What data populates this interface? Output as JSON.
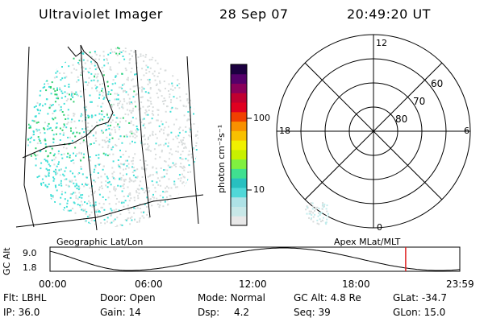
{
  "header": {
    "title": "Ultraviolet Imager",
    "date": "28 Sep 07",
    "time": "20:49:20 UT"
  },
  "geo_panel": {
    "label": "Geographic Lat/Lon"
  },
  "colorbar": {
    "unit_label": "photon cm⁻²s⁻¹",
    "tick_100": "100",
    "tick_10": "10",
    "colors": [
      "#e8e8e8",
      "#c8e8e8",
      "#aee2e6",
      "#50d8d8",
      "#28c0c0",
      "#40e090",
      "#80f040",
      "#c8f000",
      "#f0f000",
      "#f8c000",
      "#f89000",
      "#f04000",
      "#e00020",
      "#c00030",
      "#8a005a",
      "#55006a",
      "#1c0040"
    ]
  },
  "polar_panel": {
    "label": "Apex MLat/MLT",
    "mlt_labels": {
      "top": "12",
      "bottom": "0",
      "left": "18",
      "right": "6"
    },
    "lat_labels": [
      "60",
      "70",
      "80"
    ]
  },
  "altitude_plot": {
    "ylabel": "GC Alt",
    "ymax": "9.0",
    "ymin": "1.8",
    "time_ticks": [
      "00:00",
      "06:00",
      "12:00",
      "18:00",
      "23:59"
    ],
    "current_time_fraction": 0.868
  },
  "info": {
    "row1": [
      {
        "k": "Flt:",
        "v": "LBHL"
      },
      {
        "k": "Door:",
        "v": "Open"
      },
      {
        "k": "Mode:",
        "v": "Normal"
      },
      {
        "k": "GC Alt:",
        "v": "4.8 Re"
      },
      {
        "k": "GLat:",
        "v": "-34.7"
      }
    ],
    "row2": [
      {
        "k": "IP:",
        "v": "36.0"
      },
      {
        "k": "Gain:",
        "v": "14"
      },
      {
        "k": "Dsp:",
        "v": "4.2"
      },
      {
        "k": "Seq:",
        "v": "39"
      },
      {
        "k": "GLon:",
        "v": "15.0"
      }
    ]
  },
  "colors": {
    "cyan": "#40e0d8",
    "green": "#30d070",
    "grey": "#d8dcdc",
    "marker": "#e02020"
  }
}
